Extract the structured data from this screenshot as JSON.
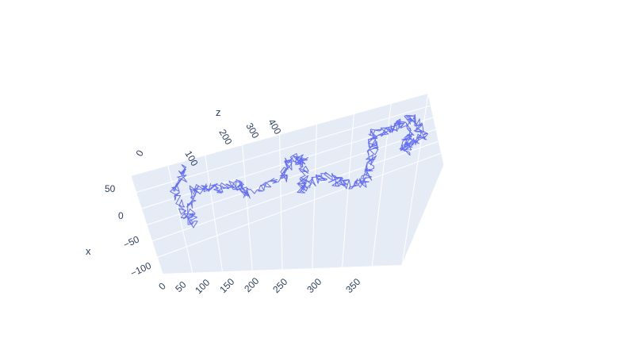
{
  "chart_data": {
    "type": "line3d",
    "title": "",
    "axes": {
      "x": {
        "title": "x",
        "ticks": [
          "50",
          "0",
          "−50",
          "−100"
        ]
      },
      "y": {
        "title": "",
        "ticks": [
          "0",
          "50",
          "100",
          "150",
          "200",
          "250",
          "300",
          "350"
        ]
      },
      "z": {
        "title": "z",
        "ticks": [
          "0",
          "100",
          "200",
          "300",
          "400"
        ]
      }
    },
    "series": [
      {
        "name": "",
        "color": "#636efa",
        "description_values": {
          "x_range": [
            -100,
            70
          ],
          "y_range": [
            0,
            400
          ],
          "z_range": [
            0,
            450
          ]
        }
      }
    ],
    "scene_background": "#e5ecf6",
    "gridline_color": "#ffffff",
    "grid": true
  }
}
